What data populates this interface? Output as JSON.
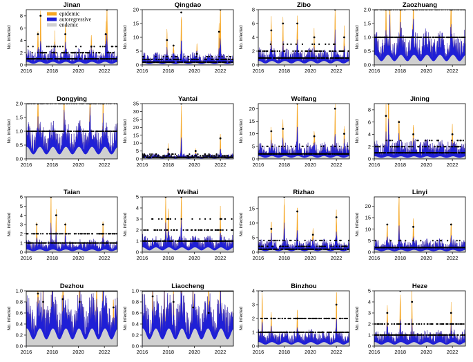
{
  "figure": {
    "legend": [
      {
        "label": "epidemic",
        "color": "#f5a623"
      },
      {
        "label": "autoregressive",
        "color": "#1f1fd6"
      },
      {
        "label": "endemic",
        "color": "#d0d0d0"
      }
    ],
    "ylabel": "No. infected"
  },
  "chart_data": [
    {
      "type": "area",
      "title": "Jinan",
      "ylabel": "No. infected",
      "yticks": [
        0,
        2,
        4,
        6,
        8
      ],
      "ylim": [
        0,
        9
      ],
      "xticks": [
        "2016",
        "2018",
        "2020",
        "2022"
      ],
      "xlim": [
        2016,
        2023
      ],
      "baseline_obs": 1,
      "obs_levels": [
        0,
        1,
        2,
        3
      ],
      "endemic_level": 0.35,
      "ar_level": 1.1,
      "peaks": [
        {
          "x": 2016.9,
          "y": 5
        },
        {
          "x": 2017.1,
          "y": 8
        },
        {
          "x": 2018.2,
          "y": 3
        },
        {
          "x": 2019.0,
          "y": 5
        },
        {
          "x": 2021.0,
          "y": 3
        },
        {
          "x": 2022.1,
          "y": 5
        },
        {
          "x": 2022.2,
          "y": 9
        }
      ],
      "legend": true
    },
    {
      "type": "area",
      "title": "Qingdao",
      "ylabel": "No. infected",
      "yticks": [
        0,
        5,
        10,
        15,
        20
      ],
      "ylim": [
        0,
        20
      ],
      "xticks": [
        "2016",
        "2018",
        "2020",
        "2022"
      ],
      "xlim": [
        2016,
        2023
      ],
      "baseline_obs": 1,
      "obs_levels": [
        0,
        1,
        2,
        3
      ],
      "endemic_level": 0.6,
      "ar_level": 2,
      "peaks": [
        {
          "x": 2017.9,
          "y": 9
        },
        {
          "x": 2018.4,
          "y": 7
        },
        {
          "x": 2019.0,
          "y": 19
        },
        {
          "x": 2020.2,
          "y": 4
        },
        {
          "x": 2021.9,
          "y": 12
        },
        {
          "x": 2022.0,
          "y": 20
        }
      ]
    },
    {
      "type": "area",
      "title": "Zibo",
      "ylabel": "No. infected",
      "yticks": [
        0,
        2,
        4,
        6,
        8
      ],
      "ylim": [
        0,
        8
      ],
      "xticks": [
        "2016",
        "2018",
        "2020",
        "2022"
      ],
      "xlim": [
        2016,
        2023
      ],
      "baseline_obs": 1,
      "obs_levels": [
        0,
        1,
        2,
        3
      ],
      "endemic_level": 0.4,
      "ar_level": 1,
      "peaks": [
        {
          "x": 2017.0,
          "y": 5
        },
        {
          "x": 2017.9,
          "y": 6
        },
        {
          "x": 2019.0,
          "y": 6
        },
        {
          "x": 2020.3,
          "y": 4
        },
        {
          "x": 2021.9,
          "y": 8
        },
        {
          "x": 2022.6,
          "y": 4
        }
      ]
    },
    {
      "type": "area",
      "title": "Zaozhuang",
      "ylabel": "No. infected",
      "yticks": [
        0.0,
        0.5,
        1.0,
        1.5,
        2.0
      ],
      "ylim": [
        0,
        2
      ],
      "xticks": [
        "2016",
        "2018",
        "2020",
        "2022"
      ],
      "xlim": [
        2016,
        2023
      ],
      "baseline_obs": 1,
      "obs_levels": [
        0,
        1,
        2
      ],
      "endemic_level": 0.25,
      "ar_level": 0.5,
      "peaks": [
        {
          "x": 2016.9,
          "y": 2
        },
        {
          "x": 2017.2,
          "y": 2
        },
        {
          "x": 2018.0,
          "y": 2
        },
        {
          "x": 2019.0,
          "y": 2
        },
        {
          "x": 2021.9,
          "y": 2
        }
      ]
    },
    {
      "type": "area",
      "title": "Dongying",
      "ylabel": "No. infected",
      "yticks": [
        0.0,
        0.5,
        1.0,
        1.5,
        2.0
      ],
      "ylim": [
        0,
        2
      ],
      "xticks": [
        "2016",
        "2018",
        "2020",
        "2022"
      ],
      "xlim": [
        2016,
        2023
      ],
      "baseline_obs": 1,
      "obs_levels": [
        0,
        1,
        2
      ],
      "endemic_level": 0.3,
      "ar_level": 0.5,
      "peaks": [
        {
          "x": 2016.9,
          "y": 2
        },
        {
          "x": 2018.9,
          "y": 2
        },
        {
          "x": 2020.9,
          "y": 2
        },
        {
          "x": 2021.9,
          "y": 2
        }
      ]
    },
    {
      "type": "area",
      "title": "Yantai",
      "ylabel": "No. infected",
      "yticks": [
        0,
        5,
        10,
        15,
        20,
        25,
        30,
        35
      ],
      "ylim": [
        0,
        35
      ],
      "xticks": [
        "2016",
        "2018",
        "2020",
        "2022"
      ],
      "xlim": [
        2016,
        2023
      ],
      "baseline_obs": 1,
      "obs_levels": [
        0,
        1,
        2,
        3
      ],
      "endemic_level": 0.5,
      "ar_level": 1.5,
      "peaks": [
        {
          "x": 2018.0,
          "y": 6
        },
        {
          "x": 2019.0,
          "y": 35
        },
        {
          "x": 2020.1,
          "y": 5
        },
        {
          "x": 2022.0,
          "y": 13
        }
      ]
    },
    {
      "type": "area",
      "title": "Weifang",
      "ylabel": "No. infected",
      "yticks": [
        0,
        5,
        10,
        15,
        20
      ],
      "ylim": [
        0,
        22
      ],
      "xticks": [
        "2016",
        "2018",
        "2020",
        "2022"
      ],
      "xlim": [
        2016,
        2023
      ],
      "baseline_obs": 2,
      "obs_levels": [
        0,
        1,
        2,
        3,
        4,
        5
      ],
      "endemic_level": 0.8,
      "ar_level": 3,
      "peaks": [
        {
          "x": 2017.0,
          "y": 11
        },
        {
          "x": 2017.9,
          "y": 12
        },
        {
          "x": 2019.0,
          "y": 22
        },
        {
          "x": 2020.3,
          "y": 9
        },
        {
          "x": 2021.9,
          "y": 20
        },
        {
          "x": 2022.6,
          "y": 10
        }
      ]
    },
    {
      "type": "area",
      "title": "Jining",
      "ylabel": "No. infected",
      "yticks": [
        0,
        2,
        4,
        6,
        8
      ],
      "ylim": [
        0,
        9
      ],
      "xticks": [
        "2016",
        "2018",
        "2020",
        "2022"
      ],
      "xlim": [
        2016,
        2023
      ],
      "baseline_obs": 1,
      "obs_levels": [
        0,
        1,
        2,
        3
      ],
      "endemic_level": 0.3,
      "ar_level": 1.5,
      "peaks": [
        {
          "x": 2016.9,
          "y": 7
        },
        {
          "x": 2017.1,
          "y": 9
        },
        {
          "x": 2017.9,
          "y": 6
        },
        {
          "x": 2019.0,
          "y": 4
        },
        {
          "x": 2022.0,
          "y": 4
        }
      ]
    },
    {
      "type": "area",
      "title": "Taian",
      "ylabel": "No. infected",
      "yticks": [
        0,
        1,
        2,
        3,
        4,
        5,
        6
      ],
      "ylim": [
        0,
        6
      ],
      "xticks": [
        "2016",
        "2018",
        "2020",
        "2022"
      ],
      "xlim": [
        2016,
        2023
      ],
      "baseline_obs": 1,
      "obs_levels": [
        0,
        1,
        2
      ],
      "endemic_level": 0.2,
      "ar_level": 0.6,
      "peaks": [
        {
          "x": 2016.8,
          "y": 3
        },
        {
          "x": 2017.9,
          "y": 6
        },
        {
          "x": 2018.3,
          "y": 4
        },
        {
          "x": 2019.0,
          "y": 3
        },
        {
          "x": 2021.9,
          "y": 3
        }
      ]
    },
    {
      "type": "area",
      "title": "Weihai",
      "ylabel": "No. infected",
      "yticks": [
        0,
        1,
        2,
        3,
        4,
        5
      ],
      "ylim": [
        0,
        5
      ],
      "xticks": [
        "2016",
        "2018",
        "2020",
        "2022"
      ],
      "xlim": [
        2016,
        2023
      ],
      "baseline_obs": 1,
      "obs_levels": [
        0,
        1,
        2,
        3
      ],
      "endemic_level": 0.3,
      "ar_level": 0.6,
      "peaks": [
        {
          "x": 2017.8,
          "y": 5
        },
        {
          "x": 2018.0,
          "y": 3
        },
        {
          "x": 2019.0,
          "y": 5
        },
        {
          "x": 2022.0,
          "y": 3
        }
      ]
    },
    {
      "type": "area",
      "title": "Rizhao",
      "ylabel": "No. infected",
      "yticks": [
        0,
        5,
        10,
        15
      ],
      "ylim": [
        0,
        19
      ],
      "xticks": [
        "2016",
        "2018",
        "2020",
        "2022"
      ],
      "xlim": [
        2016,
        2023
      ],
      "baseline_obs": 1,
      "obs_levels": [
        0,
        1,
        2,
        3,
        4
      ],
      "endemic_level": 0.6,
      "ar_level": 2,
      "peaks": [
        {
          "x": 2017.0,
          "y": 8
        },
        {
          "x": 2018.0,
          "y": 19
        },
        {
          "x": 2019.0,
          "y": 14
        },
        {
          "x": 2020.2,
          "y": 6
        },
        {
          "x": 2022.0,
          "y": 12
        }
      ]
    },
    {
      "type": "area",
      "title": "Linyi",
      "ylabel": "No. infected",
      "yticks": [
        0,
        5,
        10,
        15,
        20
      ],
      "ylim": [
        0,
        24
      ],
      "xticks": [
        "2016",
        "2018",
        "2020",
        "2022"
      ],
      "xlim": [
        2016,
        2023
      ],
      "baseline_obs": 2,
      "obs_levels": [
        0,
        1,
        2,
        3,
        4,
        5
      ],
      "endemic_level": 0.7,
      "ar_level": 2.5,
      "peaks": [
        {
          "x": 2017.0,
          "y": 12
        },
        {
          "x": 2017.9,
          "y": 24
        },
        {
          "x": 2019.0,
          "y": 11
        },
        {
          "x": 2021.9,
          "y": 12
        }
      ]
    },
    {
      "type": "area",
      "title": "Dezhou",
      "ylabel": "No. infected",
      "yticks": [
        0.0,
        0.2,
        0.4,
        0.6,
        0.8,
        1.0
      ],
      "ylim": [
        0,
        1
      ],
      "xticks": [
        "2016",
        "2018",
        "2020",
        "2022"
      ],
      "xlim": [
        2016,
        2023
      ],
      "baseline_obs": 1,
      "obs_levels": [
        1
      ],
      "endemic_level": 0.22,
      "ar_level": 0.35,
      "peaks": [
        {
          "x": 2016.9,
          "y": 0.95
        },
        {
          "x": 2017.3,
          "y": 0.8
        },
        {
          "x": 2018.0,
          "y": 1
        },
        {
          "x": 2018.8,
          "y": 0.85
        },
        {
          "x": 2020.1,
          "y": 0.8
        },
        {
          "x": 2021.4,
          "y": 1
        },
        {
          "x": 2021.9,
          "y": 1
        },
        {
          "x": 2022.7,
          "y": 0.7
        }
      ]
    },
    {
      "type": "area",
      "title": "Liaocheng",
      "ylabel": "No. infected",
      "yticks": [
        0.0,
        0.2,
        0.4,
        0.6,
        0.8,
        1.0
      ],
      "ylim": [
        0,
        1
      ],
      "xticks": [
        "2016",
        "2018",
        "2020",
        "2022"
      ],
      "xlim": [
        2016,
        2023
      ],
      "baseline_obs": 1,
      "obs_levels": [
        1
      ],
      "endemic_level": 0.22,
      "ar_level": 0.35,
      "peaks": [
        {
          "x": 2016.8,
          "y": 0.9
        },
        {
          "x": 2017.7,
          "y": 1
        },
        {
          "x": 2018.4,
          "y": 0.8
        },
        {
          "x": 2019.0,
          "y": 1
        },
        {
          "x": 2019.9,
          "y": 0.7
        },
        {
          "x": 2021.1,
          "y": 0.6
        },
        {
          "x": 2022.0,
          "y": 1
        }
      ]
    },
    {
      "type": "area",
      "title": "Binzhou",
      "ylabel": "No. infected",
      "yticks": [
        0,
        1,
        2,
        3,
        4
      ],
      "ylim": [
        0,
        4
      ],
      "xticks": [
        "2016",
        "2018",
        "2020",
        "2022"
      ],
      "xlim": [
        2016,
        2023
      ],
      "baseline_obs": 1,
      "obs_levels": [
        0,
        1,
        2
      ],
      "endemic_level": 0.2,
      "ar_level": 0.5,
      "peaks": [
        {
          "x": 2016.3,
          "y": 4
        },
        {
          "x": 2017.0,
          "y": 2
        },
        {
          "x": 2019.0,
          "y": 2
        },
        {
          "x": 2022.0,
          "y": 3
        }
      ]
    },
    {
      "type": "area",
      "title": "Heze",
      "ylabel": "No. infected",
      "yticks": [
        0,
        1,
        2,
        3,
        4,
        5
      ],
      "ylim": [
        0,
        5
      ],
      "xticks": [
        "2016",
        "2018",
        "2020",
        "2022"
      ],
      "xlim": [
        2016,
        2023
      ],
      "baseline_obs": 1,
      "obs_levels": [
        0,
        1,
        2
      ],
      "endemic_level": 0.25,
      "ar_level": 0.6,
      "peaks": [
        {
          "x": 2017.0,
          "y": 3
        },
        {
          "x": 2018.0,
          "y": 5
        },
        {
          "x": 2018.9,
          "y": 4
        },
        {
          "x": 2021.9,
          "y": 3
        }
      ]
    }
  ]
}
